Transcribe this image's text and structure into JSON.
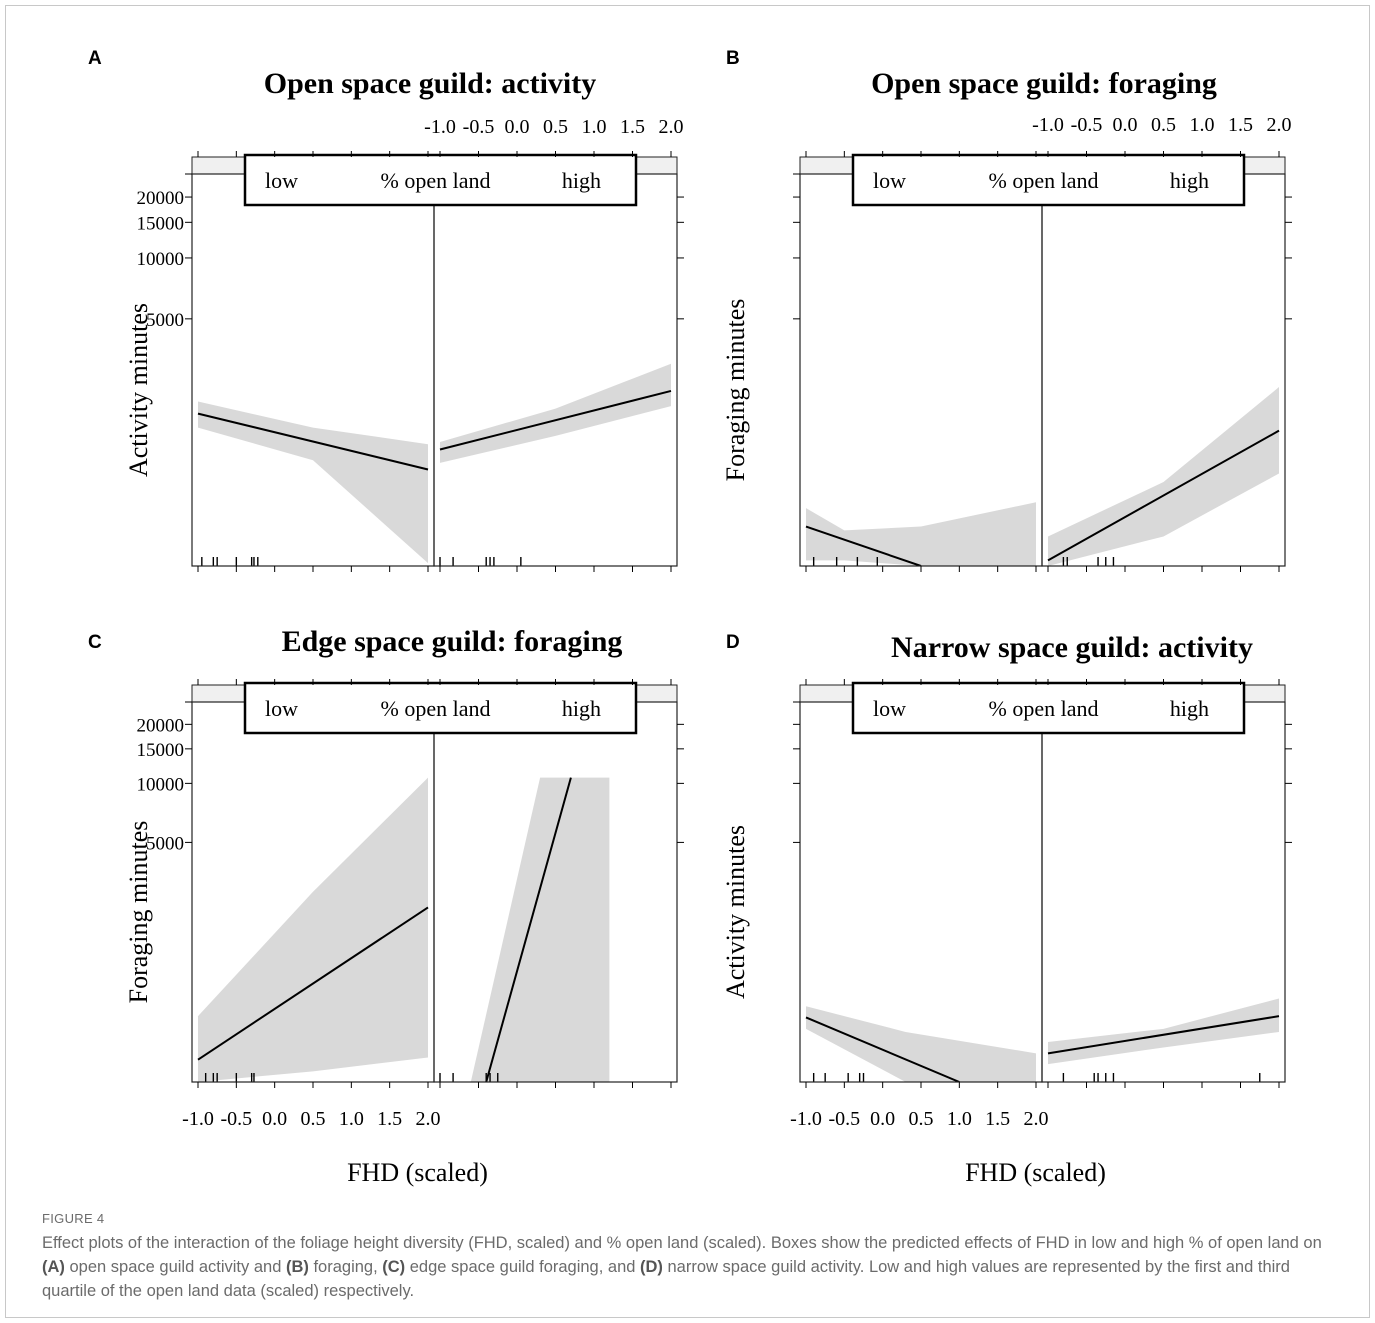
{
  "figure": {
    "label": "FIGURE 4",
    "caption": [
      {
        "t": "Effect plots of the interaction of the foliage height diversity (FHD, scaled) and % open land (scaled). Boxes show the predicted effects of FHD in low and high % of open land on ",
        "b": false
      },
      {
        "t": "(A)",
        "b": true
      },
      {
        "t": " open space guild activity and ",
        "b": false
      },
      {
        "t": "(B)",
        "b": true
      },
      {
        "t": " foraging, ",
        "b": false
      },
      {
        "t": "(C)",
        "b": true
      },
      {
        "t": " edge space guild foraging, and ",
        "b": false
      },
      {
        "t": "(D)",
        "b": true
      },
      {
        "t": " narrow space guild activity. Low and high values are represented by the first and third quartile of the open land data (scaled) respectively.",
        "b": false
      }
    ]
  },
  "chart_data": [
    {
      "type": "line",
      "panel": "A",
      "title": "Open space guild: activity",
      "ylabel": "Activity minutes",
      "xlabel": "FHD (scaled)",
      "x_ticks": [
        "-1.0",
        "-0.5",
        "0.0",
        "0.5",
        "1.0",
        "1.5",
        "2.0"
      ],
      "x_tick_side": "top",
      "xlim": [
        -1.0,
        2.0
      ],
      "y_ticks": [
        "20000",
        "15000",
        "10000",
        "5000"
      ],
      "y_scale": "log",
      "ylim": [
        300,
        26000
      ],
      "strip": {
        "left": "low",
        "center": "% open land",
        "right": "high"
      },
      "series": [
        {
          "name": "low",
          "line": [
            [
              -1.0,
              1700
            ],
            [
              2.0,
              900
            ]
          ],
          "band": [
            [
              -1.0,
              1950,
              1450
            ],
            [
              0.5,
              1450,
              1000
            ],
            [
              2.0,
              1200,
              310
            ]
          ],
          "rug": [
            -0.95,
            -0.8,
            -0.75,
            -0.5,
            -0.3,
            -0.27,
            -0.22
          ]
        },
        {
          "name": "high",
          "line": [
            [
              -1.0,
              1130
            ],
            [
              2.0,
              2200
            ]
          ],
          "band": [
            [
              -1.0,
              1230,
              970
            ],
            [
              0.5,
              1800,
              1320
            ],
            [
              2.0,
              3000,
              1850
            ]
          ],
          "rug": [
            -1.0,
            -0.83,
            -0.4,
            -0.35,
            -0.3,
            0.05
          ]
        }
      ]
    },
    {
      "type": "line",
      "panel": "B",
      "title": "Open space guild: foraging",
      "ylabel": "Foraging minutes",
      "xlabel": "",
      "x_ticks": [
        "-1.0",
        "-0.5",
        "0.0",
        "0.5",
        "1.0",
        "1.5",
        "2.0"
      ],
      "x_tick_side": "top",
      "xlim": [
        -1.0,
        2.0
      ],
      "y_ticks": [
        "20000",
        "15000",
        "10000",
        "5000"
      ],
      "y_scale": "log",
      "ylim": [
        300,
        26000
      ],
      "strip": {
        "left": "low",
        "center": "% open land",
        "right": "high"
      },
      "series": [
        {
          "name": "low",
          "line": [
            [
              -1.0,
              470
            ],
            [
              0.5,
              300
            ]
          ],
          "band": [
            [
              -1.0,
              580,
              320
            ],
            [
              -0.5,
              450,
              320
            ],
            [
              0.5,
              470,
              300
            ],
            [
              2.0,
              620,
              300
            ]
          ],
          "rug": [
            -0.9,
            -0.6,
            -0.33,
            -0.07
          ]
        },
        {
          "name": "high",
          "line": [
            [
              -1.0,
              320
            ],
            [
              2.0,
              1400
            ]
          ],
          "band": [
            [
              -1.0,
              420,
              300
            ],
            [
              0.5,
              780,
              420
            ],
            [
              2.0,
              2300,
              860
            ]
          ],
          "rug": [
            -0.75,
            -0.8,
            -0.35,
            -0.25,
            -0.15
          ]
        }
      ]
    },
    {
      "type": "line",
      "panel": "C",
      "title": "Edge space guild: foraging",
      "ylabel": "Foraging minutes",
      "xlabel": "FHD (scaled)",
      "x_ticks": [
        "-1.0",
        "-0.5",
        "0.0",
        "0.5",
        "1.0",
        "1.5",
        "2.0"
      ],
      "x_tick_side": "bottom",
      "xlim": [
        -1.0,
        2.0
      ],
      "y_ticks": [
        "20000",
        "15000",
        "10000",
        "5000"
      ],
      "y_scale": "log",
      "ylim": [
        300,
        26000
      ],
      "strip": {
        "left": "low",
        "center": "% open land",
        "right": "high"
      },
      "series": [
        {
          "name": "low",
          "line": [
            [
              -1.0,
              390
            ],
            [
              2.0,
              2330
            ]
          ],
          "band": [
            [
              -1.0,
              650,
              300
            ],
            [
              0.5,
              2800,
              340
            ],
            [
              2.0,
              10700,
              400
            ]
          ],
          "rug": [
            -0.9,
            -0.75,
            -0.8,
            -0.5,
            -0.3,
            -0.27
          ]
        },
        {
          "name": "high",
          "line": [
            [
              -0.4,
              300
            ],
            [
              0.7,
              10700
            ]
          ],
          "band": [
            [
              -0.6,
              300,
              300
            ],
            [
              0.3,
              10700,
              300
            ],
            [
              1.2,
              10700,
              300
            ]
          ],
          "rug": [
            -1.0,
            -0.83,
            -0.4,
            -0.35,
            -0.25
          ]
        }
      ]
    },
    {
      "type": "line",
      "panel": "D",
      "title": "Narrow space guild: activity",
      "ylabel": "Activity minutes",
      "xlabel": "FHD (scaled)",
      "x_ticks": [
        "-1.0",
        "-0.5",
        "0.0",
        "0.5",
        "1.0",
        "1.5",
        "2.0"
      ],
      "x_tick_side": "bottom",
      "xlim": [
        -1.0,
        2.0
      ],
      "y_ticks": [
        "20000",
        "15000",
        "10000",
        "5000"
      ],
      "y_scale": "log",
      "ylim": [
        300,
        26000
      ],
      "strip": {
        "left": "low",
        "center": "% open land",
        "right": "high"
      },
      "series": [
        {
          "name": "low",
          "line": [
            [
              -1.0,
              640
            ],
            [
              1.0,
              300
            ]
          ],
          "band": [
            [
              -1.0,
              730,
              560
            ],
            [
              0.3,
              540,
              300
            ],
            [
              2.0,
              420,
              300
            ]
          ],
          "rug": [
            -0.9,
            -0.75,
            -0.45,
            -0.3,
            -0.25
          ]
        },
        {
          "name": "high",
          "line": [
            [
              -1.0,
              420
            ],
            [
              2.0,
              650
            ]
          ],
          "band": [
            [
              -1.0,
              480,
              370
            ],
            [
              0.5,
              560,
              450
            ],
            [
              2.0,
              800,
              540
            ]
          ],
          "rug": [
            -0.8,
            -0.4,
            -0.35,
            -0.25,
            -0.15,
            1.75
          ]
        }
      ]
    }
  ]
}
